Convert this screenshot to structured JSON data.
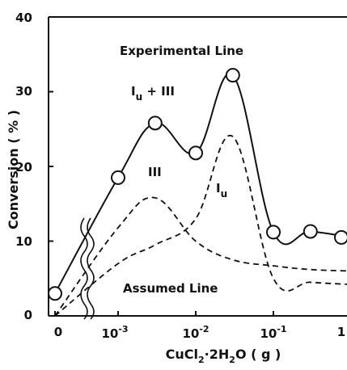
{
  "chart_data": {
    "type": "line",
    "title": "",
    "xlabel": "CuCl2·2H2O (g)",
    "ylabel": "Conversion (%)",
    "xscale": "log (with x=0 at left of axis break)",
    "ylim": [
      0,
      40
    ],
    "grid": false,
    "y_ticks": [
      "0",
      "10",
      "20",
      "30",
      "40"
    ],
    "x_ticks": [
      {
        "label": "0",
        "value": 0
      },
      {
        "label": "10",
        "exp": "-3",
        "value": 0.001
      },
      {
        "label": "10",
        "exp": "-2",
        "value": 0.01
      },
      {
        "label": "10",
        "exp": "-1",
        "value": 0.1
      },
      {
        "label": "1",
        "value": 1
      }
    ],
    "annotations": {
      "experimental": "Experimental Line",
      "assumed": "Assumed Line",
      "sum_label": "Iu + III",
      "iii_label": "III",
      "iu_label": "Iu"
    },
    "series": [
      {
        "name": "Experimental Line",
        "style": "solid-with-circles",
        "points": [
          {
            "x": 0,
            "y": 3.0
          },
          {
            "x": 0.001,
            "y": 18.5
          },
          {
            "x": 0.003,
            "y": 25.8
          },
          {
            "x": 0.01,
            "y": 21.8
          },
          {
            "x": 0.03,
            "y": 32.2
          },
          {
            "x": 0.1,
            "y": 11.2
          },
          {
            "x": 0.3,
            "y": 11.3
          },
          {
            "x": 1.0,
            "y": 10.5
          }
        ]
      },
      {
        "name": "III",
        "style": "dashed",
        "points": [
          {
            "x": 0,
            "y": 0.0
          },
          {
            "x": 0.001,
            "y": 11.8
          },
          {
            "x": 0.003,
            "y": 15.8
          },
          {
            "x": 0.01,
            "y": 10.0
          },
          {
            "x": 0.03,
            "y": 7.5
          },
          {
            "x": 0.1,
            "y": 6.7
          },
          {
            "x": 0.3,
            "y": 6.2
          },
          {
            "x": 1.0,
            "y": 6.0
          }
        ]
      },
      {
        "name": "Iu",
        "style": "dashed",
        "points": [
          {
            "x": 0,
            "y": 0.0
          },
          {
            "x": 0.001,
            "y": 7.0
          },
          {
            "x": 0.003,
            "y": 9.5
          },
          {
            "x": 0.01,
            "y": 13.0
          },
          {
            "x": 0.03,
            "y": 24.0
          },
          {
            "x": 0.1,
            "y": 5.0
          },
          {
            "x": 0.3,
            "y": 4.5
          },
          {
            "x": 1.0,
            "y": 4.2
          }
        ]
      }
    ]
  }
}
